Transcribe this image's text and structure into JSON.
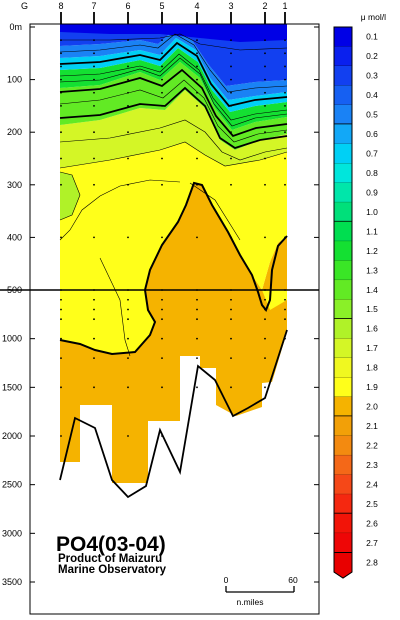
{
  "chart_data": {
    "type": "contour",
    "title": "PO4(03-04)",
    "subtitle_lines": [
      "Product of Maizuru",
      "Marine Observatory"
    ],
    "unit_label": "μ mol/l",
    "x_top_label": "G",
    "stations": [
      "8",
      "7",
      "6",
      "5",
      "4",
      "3",
      "2",
      "1"
    ],
    "depth_ticks": [
      "0m",
      "100",
      "200",
      "300",
      "400",
      "500",
      "1000",
      "1500",
      "2000",
      "2500",
      "3000",
      "3500"
    ],
    "depth_values": [
      0,
      100,
      200,
      300,
      400,
      500,
      1000,
      1500,
      2000,
      2500,
      3000,
      3500
    ],
    "scale_break_depth": 500,
    "color_levels": [
      {
        "label": "0.1",
        "color": "#0000e6"
      },
      {
        "label": "0.2",
        "color": "#0a20ee"
      },
      {
        "label": "0.3",
        "color": "#1240f0"
      },
      {
        "label": "0.4",
        "color": "#1660f2"
      },
      {
        "label": "0.5",
        "color": "#1a82f5"
      },
      {
        "label": "0.6",
        "color": "#12a8f7"
      },
      {
        "label": "0.7",
        "color": "#00d0f5"
      },
      {
        "label": "0.8",
        "color": "#00e6dc"
      },
      {
        "label": "0.9",
        "color": "#00e6aa"
      },
      {
        "label": "1.0",
        "color": "#00e07a"
      },
      {
        "label": "1.1",
        "color": "#00de50"
      },
      {
        "label": "1.2",
        "color": "#14e032"
      },
      {
        "label": "1.3",
        "color": "#3ae626"
      },
      {
        "label": "1.4",
        "color": "#62ea24"
      },
      {
        "label": "1.5",
        "color": "#8af028"
      },
      {
        "label": "1.6",
        "color": "#b0f228"
      },
      {
        "label": "1.7",
        "color": "#d4f626"
      },
      {
        "label": "1.8",
        "color": "#f0f820"
      },
      {
        "label": "1.9",
        "color": "#ffff1a"
      },
      {
        "label": "2.0",
        "color": "#f5b300"
      },
      {
        "label": "2.1",
        "color": "#f2a008"
      },
      {
        "label": "2.2",
        "color": "#f38a10"
      },
      {
        "label": "2.3",
        "color": "#f46818"
      },
      {
        "label": "2.4",
        "color": "#f54818"
      },
      {
        "label": "2.5",
        "color": "#f52810"
      },
      {
        "label": "2.6",
        "color": "#f21408"
      },
      {
        "label": "2.7",
        "color": "#ee0606"
      },
      {
        "label": "2.8",
        "color": "#e80000"
      }
    ],
    "bold_contours": [
      "0.5",
      "1.0",
      "1.5",
      "2.0",
      "2.5"
    ],
    "scale_bar": {
      "start": "0",
      "end": "60",
      "unit": "n.miles"
    }
  }
}
